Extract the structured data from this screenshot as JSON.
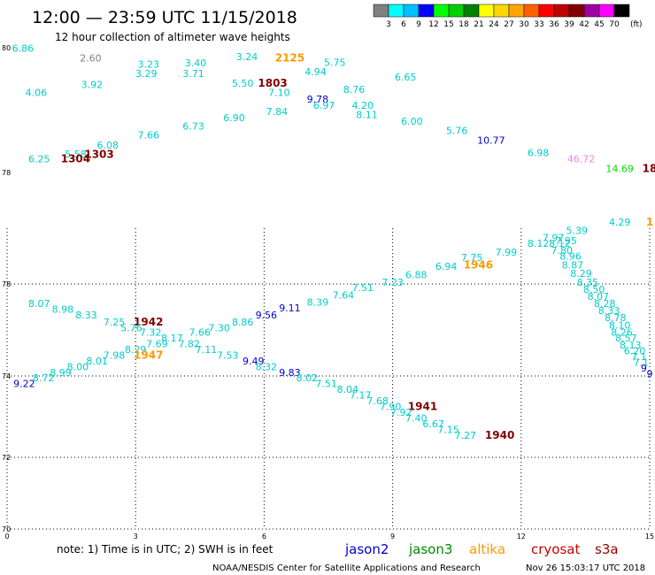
{
  "header": {
    "title": "12:00 — 23:59 UTC 11/15/2018",
    "subtitle": "12 hour collection of altimeter wave heights"
  },
  "legend": {
    "unit": "(ft)",
    "colors": [
      "#808080",
      "#00ffff",
      "#00bfff",
      "#0000ff",
      "#00ff00",
      "#00d000",
      "#008000",
      "#ffff00",
      "#ffd700",
      "#ffa500",
      "#ff6000",
      "#ff0000",
      "#c00000",
      "#800000",
      "#a000a0",
      "#ff00ff",
      "#000000"
    ],
    "labels": [
      "3",
      "6",
      "9",
      "12",
      "15",
      "18",
      "21",
      "24",
      "27",
      "30",
      "33",
      "36",
      "39",
      "42",
      "45",
      "70"
    ]
  },
  "footer": {
    "note": "note:  1) Time is in UTC; 2) SWH is in feet",
    "satellites": [
      {
        "name": "jason2",
        "color": "#0000cc"
      },
      {
        "name": "jason3",
        "color": "#008800"
      },
      {
        "name": "altika",
        "color": "#ff9900"
      },
      {
        "name": "cryosat",
        "color": "#cc0000"
      },
      {
        "name": "s3a",
        "color": "#990000"
      }
    ],
    "credit": "NOAA/NESDIS Center for Satellite Applications and Research",
    "timestamp": "Nov 26 15:03:17 UTC 2018"
  },
  "chart_data": {
    "type": "scatter",
    "title": "12:00 — 23:59 UTC 11/15/2018",
    "subtitle": "12 hour collection of altimeter wave heights",
    "panels": [
      {
        "name": "upper",
        "y_ticks": [
          "80",
          "78"
        ],
        "points": [
          {
            "x": 0.37,
            "y": 79.95,
            "label": "6.86",
            "color": "#00cccc"
          },
          {
            "x": 1.95,
            "y": 79.8,
            "label": "2.60",
            "color": "#808080"
          },
          {
            "x": 3.3,
            "y": 79.7,
            "label": "3.23",
            "color": "#00cccc"
          },
          {
            "x": 4.4,
            "y": 79.72,
            "label": "3.40",
            "color": "#00cccc"
          },
          {
            "x": 5.6,
            "y": 79.82,
            "label": "3.24",
            "color": "#00cccc"
          },
          {
            "x": 6.6,
            "y": 79.8,
            "label": "2125",
            "color": "#ff9900",
            "bold": true
          },
          {
            "x": 8.3,
            "y": 79.05,
            "label": "4.20",
            "color": "#00cccc"
          },
          {
            "x": 7.2,
            "y": 79.58,
            "label": "4.94",
            "color": "#00cccc"
          },
          {
            "x": 7.65,
            "y": 79.73,
            "label": "5.75",
            "color": "#00cccc"
          },
          {
            "x": 0.68,
            "y": 79.25,
            "label": "4.06",
            "color": "#00cccc"
          },
          {
            "x": 1.98,
            "y": 79.38,
            "label": "3.92",
            "color": "#00cccc"
          },
          {
            "x": 3.25,
            "y": 79.55,
            "label": "3.29",
            "color": "#00cccc"
          },
          {
            "x": 4.35,
            "y": 79.55,
            "label": "3.71",
            "color": "#00cccc"
          },
          {
            "x": 5.5,
            "y": 79.4,
            "label": "5.50",
            "color": "#00cccc"
          },
          {
            "x": 6.2,
            "y": 79.4,
            "label": "1803",
            "color": "#800000",
            "bold": true
          },
          {
            "x": 6.35,
            "y": 79.25,
            "label": "7.10",
            "color": "#00cccc"
          },
          {
            "x": 7.25,
            "y": 79.15,
            "label": "9.78",
            "color": "#0000cc"
          },
          {
            "x": 7.4,
            "y": 79.05,
            "label": "6.97",
            "color": "#00cccc"
          },
          {
            "x": 8.1,
            "y": 79.3,
            "label": "8.76",
            "color": "#00cccc"
          },
          {
            "x": 9.3,
            "y": 79.5,
            "label": "6.65",
            "color": "#00cccc"
          },
          {
            "x": 6.3,
            "y": 78.95,
            "label": "7.84",
            "color": "#00cccc"
          },
          {
            "x": 5.3,
            "y": 78.85,
            "label": "6.90",
            "color": "#00cccc"
          },
          {
            "x": 8.4,
            "y": 78.9,
            "label": "8.11",
            "color": "#00cccc"
          },
          {
            "x": 9.45,
            "y": 78.8,
            "label": "6.00",
            "color": "#00cccc"
          },
          {
            "x": 4.35,
            "y": 78.72,
            "label": "6.73",
            "color": "#00cccc"
          },
          {
            "x": 3.3,
            "y": 78.58,
            "label": "7.66",
            "color": "#00cccc"
          },
          {
            "x": 10.5,
            "y": 78.65,
            "label": "5.76",
            "color": "#00cccc"
          },
          {
            "x": 11.3,
            "y": 78.5,
            "label": "10.77",
            "color": "#0000cc"
          },
          {
            "x": 2.35,
            "y": 78.42,
            "label": "6.08",
            "color": "#00cccc"
          },
          {
            "x": 12.4,
            "y": 78.3,
            "label": "6.98",
            "color": "#00cccc"
          },
          {
            "x": 1.6,
            "y": 78.28,
            "label": "5.58",
            "color": "#00cccc"
          },
          {
            "x": 2.15,
            "y": 78.27,
            "label": "1303",
            "color": "#800000",
            "bold": true
          },
          {
            "x": 0.75,
            "y": 78.2,
            "label": "6.25",
            "color": "#00cccc"
          },
          {
            "x": 1.6,
            "y": 78.2,
            "label": "1304",
            "color": "#800000",
            "bold": true
          },
          {
            "x": 13.4,
            "y": 78.2,
            "label": "46.72",
            "color": "#ee82ee"
          },
          {
            "x": 14.3,
            "y": 78.05,
            "label": "14.69",
            "color": "#00dd00"
          },
          {
            "x": 15.0,
            "y": 78.05,
            "label": "18",
            "color": "#800000",
            "bold": true
          }
        ]
      },
      {
        "name": "lower",
        "x_ticks": [
          "0",
          "3",
          "6",
          "9",
          "12",
          "15"
        ],
        "y_ticks": [
          "78",
          "74",
          "72",
          "70"
        ],
        "points": [
          {
            "x": 14.3,
            "y": 80.6,
            "label": "4.29",
            "color": "#00cccc"
          },
          {
            "x": 15.0,
            "y": 80.6,
            "label": "1",
            "color": "#ff9900",
            "bold": true
          },
          {
            "x": 13.3,
            "y": 80.3,
            "label": "5.39",
            "color": "#00cccc"
          },
          {
            "x": 12.75,
            "y": 80.05,
            "label": "7.97",
            "color": "#00cccc"
          },
          {
            "x": 13.05,
            "y": 79.95,
            "label": "7.95",
            "color": "#00cccc"
          },
          {
            "x": 12.4,
            "y": 79.85,
            "label": "8.12",
            "color": "#00cccc"
          },
          {
            "x": 12.9,
            "y": 79.85,
            "label": "8.12",
            "color": "#00cccc"
          },
          {
            "x": 12.95,
            "y": 79.6,
            "label": "7.80",
            "color": "#00cccc"
          },
          {
            "x": 11.65,
            "y": 79.55,
            "label": "7.99",
            "color": "#00cccc"
          },
          {
            "x": 13.15,
            "y": 79.4,
            "label": "8.96",
            "color": "#00cccc"
          },
          {
            "x": 10.85,
            "y": 79.35,
            "label": "7.75",
            "color": "#00cccc"
          },
          {
            "x": 13.2,
            "y": 79.1,
            "label": "8.87",
            "color": "#00cccc"
          },
          {
            "x": 11.0,
            "y": 79.1,
            "label": "1946",
            "color": "#ff9900",
            "bold": true
          },
          {
            "x": 10.25,
            "y": 79.05,
            "label": "6.94",
            "color": "#00cccc"
          },
          {
            "x": 13.4,
            "y": 78.8,
            "label": "8.29",
            "color": "#00cccc"
          },
          {
            "x": 9.55,
            "y": 78.75,
            "label": "6.88",
            "color": "#00cccc"
          },
          {
            "x": 13.55,
            "y": 78.5,
            "label": "8.35",
            "color": "#00cccc"
          },
          {
            "x": 9.0,
            "y": 78.5,
            "label": "7.23",
            "color": "#00cccc"
          },
          {
            "x": 13.7,
            "y": 78.25,
            "label": "8.50",
            "color": "#00cccc"
          },
          {
            "x": 8.3,
            "y": 78.3,
            "label": "7.51",
            "color": "#00cccc"
          },
          {
            "x": 13.8,
            "y": 78.0,
            "label": "8.07",
            "color": "#00cccc"
          },
          {
            "x": 7.85,
            "y": 78.05,
            "label": "7.64",
            "color": "#00cccc"
          },
          {
            "x": 0.75,
            "y": 77.75,
            "label": "8.07",
            "color": "#00cccc"
          },
          {
            "x": 13.95,
            "y": 77.75,
            "label": "8.28",
            "color": "#00cccc"
          },
          {
            "x": 7.25,
            "y": 77.8,
            "label": "8.39",
            "color": "#00cccc"
          },
          {
            "x": 1.3,
            "y": 77.55,
            "label": "8.98",
            "color": "#00cccc"
          },
          {
            "x": 6.6,
            "y": 77.6,
            "label": "9.11",
            "color": "#0000cc"
          },
          {
            "x": 14.05,
            "y": 77.5,
            "label": "8.33",
            "color": "#00cccc"
          },
          {
            "x": 1.85,
            "y": 77.35,
            "label": "8.33",
            "color": "#00cccc"
          },
          {
            "x": 6.05,
            "y": 77.35,
            "label": "9.56",
            "color": "#0000cc"
          },
          {
            "x": 14.2,
            "y": 77.25,
            "label": "8.78",
            "color": "#00cccc"
          },
          {
            "x": 2.5,
            "y": 77.1,
            "label": "7.25",
            "color": "#00cccc"
          },
          {
            "x": 3.3,
            "y": 77.1,
            "label": "1942",
            "color": "#800000",
            "bold": true
          },
          {
            "x": 5.5,
            "y": 77.1,
            "label": "8.86",
            "color": "#00cccc"
          },
          {
            "x": 14.3,
            "y": 77.0,
            "label": "8.10",
            "color": "#00cccc"
          },
          {
            "x": 2.9,
            "y": 76.9,
            "label": "5.76",
            "color": "#00cccc"
          },
          {
            "x": 4.95,
            "y": 76.9,
            "label": "7.30",
            "color": "#00cccc"
          },
          {
            "x": 3.35,
            "y": 76.75,
            "label": "7.32",
            "color": "#00cccc"
          },
          {
            "x": 4.5,
            "y": 76.75,
            "label": "7.66",
            "color": "#00cccc"
          },
          {
            "x": 14.35,
            "y": 76.75,
            "label": "8.26",
            "color": "#00cccc"
          },
          {
            "x": 3.85,
            "y": 76.55,
            "label": "8.17",
            "color": "#00cccc"
          },
          {
            "x": 14.45,
            "y": 76.55,
            "label": "8.57",
            "color": "#00cccc"
          },
          {
            "x": 3.5,
            "y": 76.35,
            "label": "7.69",
            "color": "#00cccc"
          },
          {
            "x": 4.25,
            "y": 76.35,
            "label": "7.82",
            "color": "#00cccc"
          },
          {
            "x": 14.55,
            "y": 76.3,
            "label": "8.13",
            "color": "#00cccc"
          },
          {
            "x": 3.0,
            "y": 76.15,
            "label": "8.29",
            "color": "#00cccc"
          },
          {
            "x": 4.65,
            "y": 76.15,
            "label": "7.11",
            "color": "#00cccc"
          },
          {
            "x": 14.65,
            "y": 76.1,
            "label": "6.20",
            "color": "#00cccc"
          },
          {
            "x": 3.3,
            "y": 75.95,
            "label": "1947",
            "color": "#ff9900",
            "bold": true
          },
          {
            "x": 2.5,
            "y": 75.95,
            "label": "7.98",
            "color": "#00cccc"
          },
          {
            "x": 5.15,
            "y": 75.95,
            "label": "7.53",
            "color": "#00cccc"
          },
          {
            "x": 14.75,
            "y": 75.9,
            "label": "7.1",
            "color": "#00cccc"
          },
          {
            "x": 2.1,
            "y": 75.75,
            "label": "8.01",
            "color": "#00cccc"
          },
          {
            "x": 5.75,
            "y": 75.75,
            "label": "9.49",
            "color": "#0000cc"
          },
          {
            "x": 14.8,
            "y": 75.7,
            "label": "7.1",
            "color": "#00cccc"
          },
          {
            "x": 1.65,
            "y": 75.55,
            "label": "8.00",
            "color": "#00cccc"
          },
          {
            "x": 6.05,
            "y": 75.55,
            "label": "8.32",
            "color": "#00cccc"
          },
          {
            "x": 14.9,
            "y": 75.5,
            "label": "9.",
            "color": "#0000cc"
          },
          {
            "x": 1.25,
            "y": 75.35,
            "label": "8.99",
            "color": "#00cccc"
          },
          {
            "x": 6.6,
            "y": 75.35,
            "label": "9.83",
            "color": "#0000cc"
          },
          {
            "x": 15.0,
            "y": 75.3,
            "label": "9",
            "color": "#0000cc"
          },
          {
            "x": 0.85,
            "y": 75.15,
            "label": "8.72",
            "color": "#00cccc"
          },
          {
            "x": 7.0,
            "y": 75.15,
            "label": "8.02",
            "color": "#00cccc"
          },
          {
            "x": 0.4,
            "y": 74.95,
            "label": "9.22",
            "color": "#0000cc"
          },
          {
            "x": 7.45,
            "y": 74.95,
            "label": "7.51",
            "color": "#00cccc"
          },
          {
            "x": 7.95,
            "y": 74.75,
            "label": "8.04",
            "color": "#00cccc"
          },
          {
            "x": 8.25,
            "y": 74.55,
            "label": "7.17",
            "color": "#00cccc"
          },
          {
            "x": 8.65,
            "y": 74.35,
            "label": "7.68",
            "color": "#00cccc"
          },
          {
            "x": 8.95,
            "y": 74.15,
            "label": "7.90",
            "color": "#00cccc"
          },
          {
            "x": 9.7,
            "y": 74.15,
            "label": "1941",
            "color": "#800000",
            "bold": true
          },
          {
            "x": 9.2,
            "y": 73.95,
            "label": "7.92",
            "color": "#00cccc"
          },
          {
            "x": 9.55,
            "y": 73.75,
            "label": "7.40",
            "color": "#00cccc"
          },
          {
            "x": 9.95,
            "y": 73.55,
            "label": "6.67",
            "color": "#00cccc"
          },
          {
            "x": 10.3,
            "y": 73.35,
            "label": "7.15",
            "color": "#00cccc"
          },
          {
            "x": 10.7,
            "y": 73.15,
            "label": "7.27",
            "color": "#00cccc"
          },
          {
            "x": 11.5,
            "y": 73.15,
            "label": "1940",
            "color": "#800000",
            "bold": true
          }
        ]
      }
    ]
  }
}
